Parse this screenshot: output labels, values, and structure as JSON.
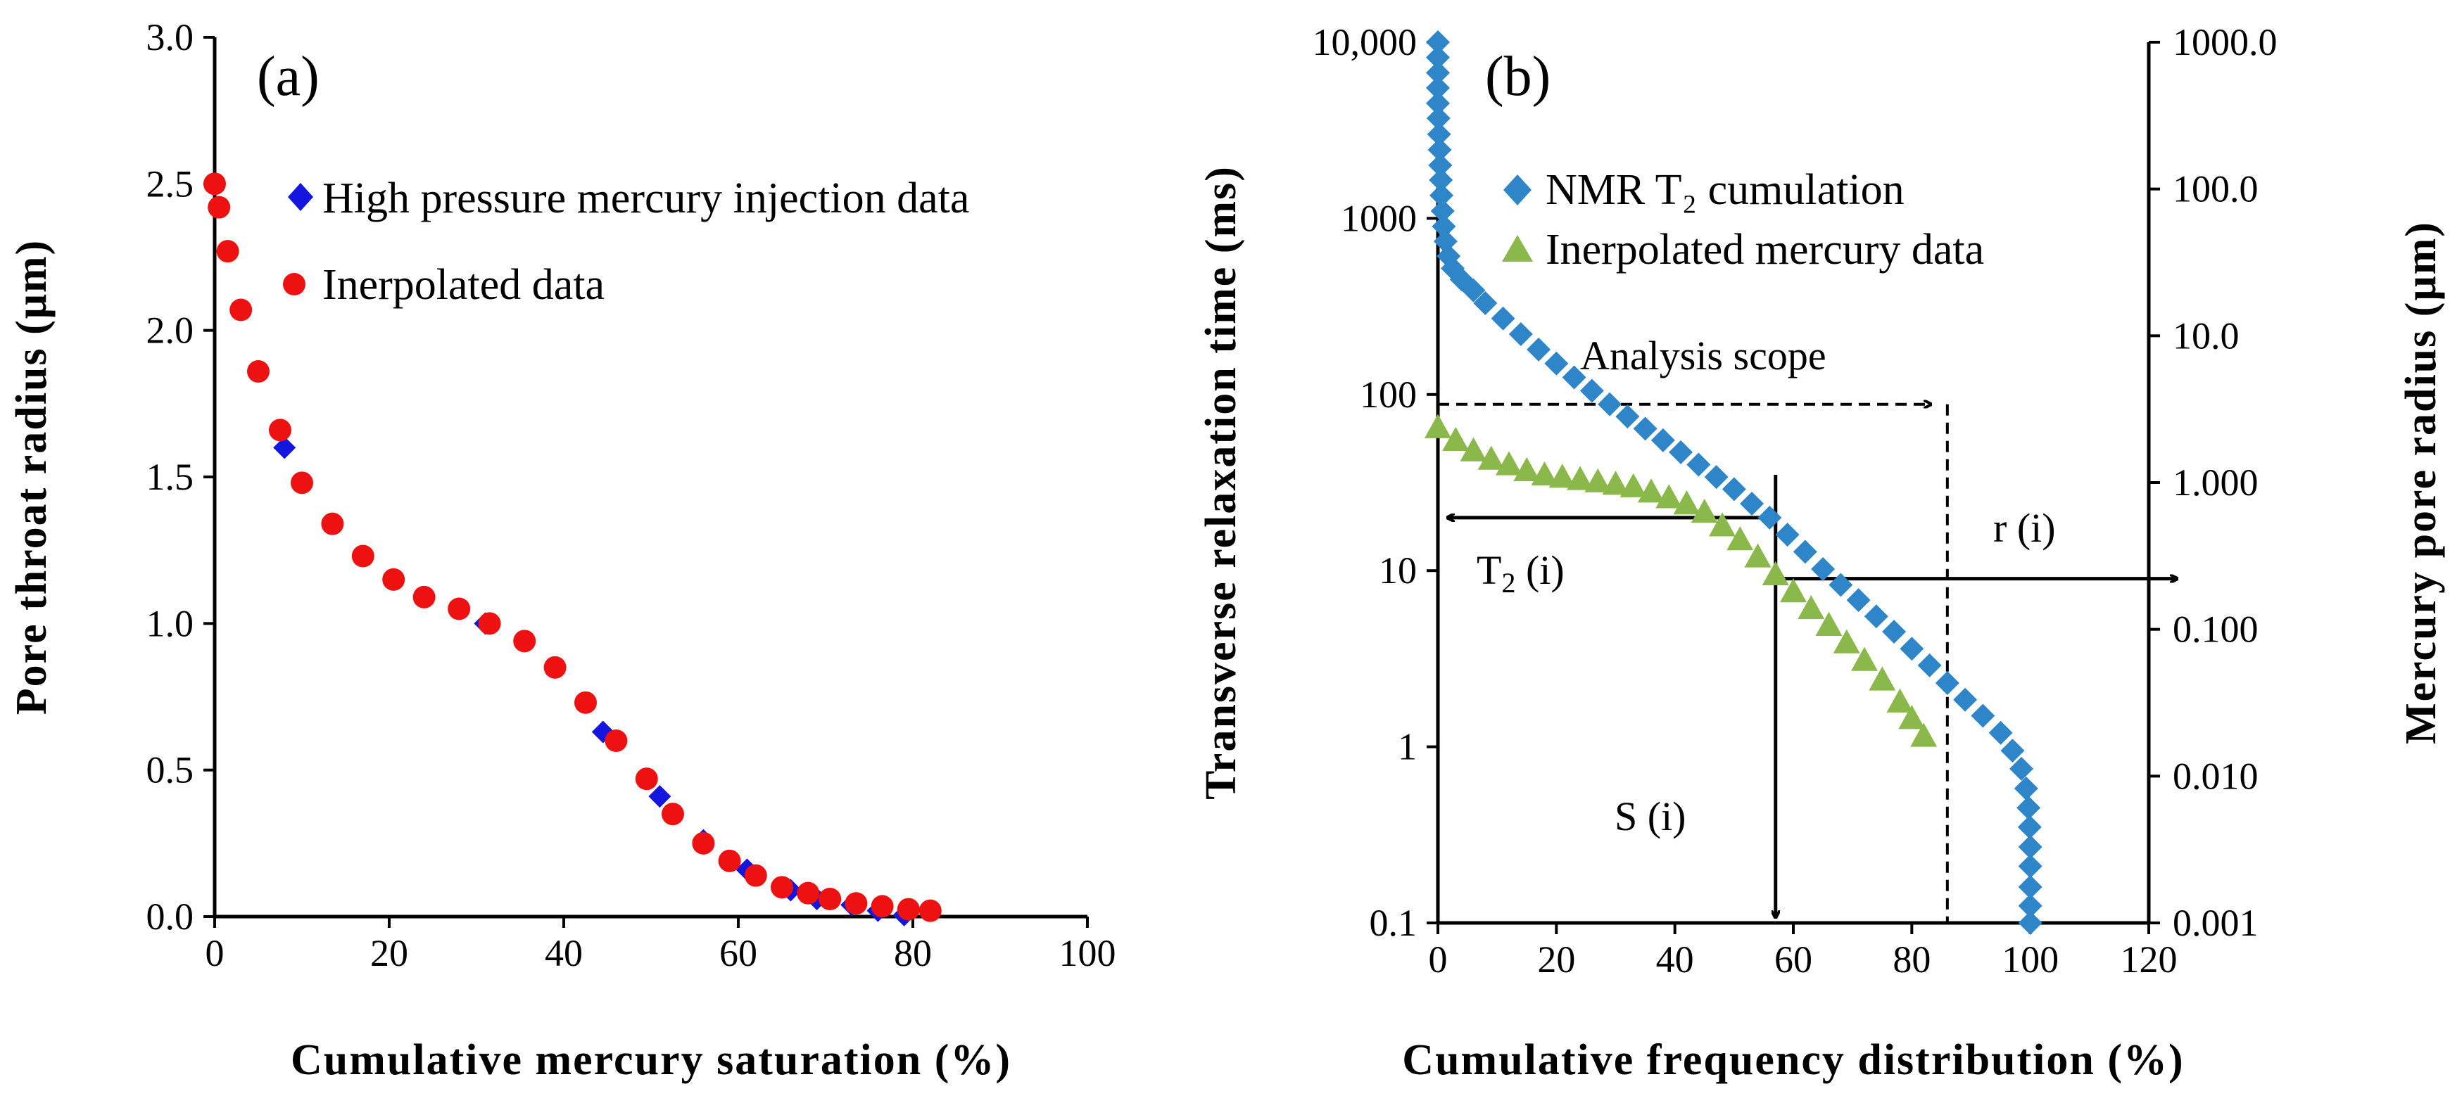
{
  "chart_data": [
    {
      "panel": "(a)",
      "type": "scatter",
      "title": "",
      "xlabel": "Cumulative mercury saturation (%)",
      "ylabel": "Pore throat radius (μm)",
      "xlim": [
        0,
        100
      ],
      "ylim": [
        0,
        3.0
      ],
      "x_ticks": [
        "0",
        "20",
        "40",
        "60",
        "80",
        "100"
      ],
      "y_ticks": [
        "0.0",
        "0.5",
        "1.0",
        "1.5",
        "2.0",
        "2.5",
        "3.0"
      ],
      "legend_position": "top-right",
      "series": [
        {
          "name": "High pressure mercury injection data",
          "marker": "diamond",
          "color": "#1515e0",
          "points": [
            [
              8.0,
              1.6
            ],
            [
              31.0,
              1.0
            ],
            [
              44.5,
              0.63
            ],
            [
              51.0,
              0.41
            ],
            [
              56.0,
              0.26
            ],
            [
              61.0,
              0.16
            ],
            [
              66.0,
              0.09
            ],
            [
              69.0,
              0.06
            ],
            [
              73.0,
              0.04
            ],
            [
              76.0,
              0.02
            ],
            [
              79.0,
              0.005
            ]
          ]
        },
        {
          "name": "Inerpolated data",
          "marker": "circle",
          "color": "#ee1111",
          "points": [
            [
              0.0,
              2.5
            ],
            [
              0.5,
              2.42
            ],
            [
              1.5,
              2.27
            ],
            [
              3.0,
              2.07
            ],
            [
              5.0,
              1.86
            ],
            [
              7.5,
              1.66
            ],
            [
              10.0,
              1.48
            ],
            [
              13.5,
              1.34
            ],
            [
              17.0,
              1.23
            ],
            [
              20.5,
              1.15
            ],
            [
              24.0,
              1.09
            ],
            [
              28.0,
              1.05
            ],
            [
              31.5,
              1.0
            ],
            [
              35.5,
              0.94
            ],
            [
              39.0,
              0.85
            ],
            [
              42.5,
              0.73
            ],
            [
              46.0,
              0.6
            ],
            [
              49.5,
              0.47
            ],
            [
              52.5,
              0.35
            ],
            [
              56.0,
              0.25
            ],
            [
              59.0,
              0.19
            ],
            [
              62.0,
              0.14
            ],
            [
              65.0,
              0.1
            ],
            [
              68.0,
              0.08
            ],
            [
              70.5,
              0.06
            ],
            [
              73.5,
              0.045
            ],
            [
              76.5,
              0.035
            ],
            [
              79.5,
              0.025
            ],
            [
              82.0,
              0.02
            ]
          ]
        }
      ]
    },
    {
      "panel": "(b)",
      "type": "scatter",
      "title": "",
      "xlabel": "Cumulative frequency distribution (%)",
      "ylabel": "Transverse relaxation time (ms)",
      "ylabel_right": "Mercury pore radius (μm)",
      "xlim": [
        0,
        120
      ],
      "ylim_log": [
        0.1,
        10000
      ],
      "ylim_right_log": [
        0.001,
        1000
      ],
      "x_ticks": [
        "0",
        "20",
        "40",
        "60",
        "80",
        "100",
        "120"
      ],
      "y_ticks": [
        "0.1",
        "1",
        "10",
        "100",
        "1000",
        "10,000"
      ],
      "y_ticks_right": [
        "0.001",
        "0.010",
        "0.100",
        "1.000",
        "10.0",
        "100.0",
        "1000.0"
      ],
      "legend_position": "top-left",
      "series": [
        {
          "name": "NMR T₂ cumulation",
          "marker": "diamond",
          "color": "#2e86c8",
          "points": [
            [
              0.0,
              10000
            ],
            [
              0.0,
              8200
            ],
            [
              0.0,
              6700
            ],
            [
              0.0,
              5500
            ],
            [
              0.0,
              4500
            ],
            [
              0.1,
              3700
            ],
            [
              0.2,
              3000
            ],
            [
              0.3,
              2450
            ],
            [
              0.4,
              2000
            ],
            [
              0.5,
              1650
            ],
            [
              0.6,
              1350
            ],
            [
              0.8,
              1100
            ],
            [
              1.0,
              900
            ],
            [
              1.3,
              740
            ],
            [
              1.8,
              610
            ],
            [
              2.5,
              520
            ],
            [
              4.0,
              450
            ],
            [
              6.0,
              390
            ],
            [
              8.0,
              330
            ],
            [
              11.0,
              270
            ],
            [
              14.0,
              220
            ],
            [
              17.0,
              180
            ],
            [
              20.0,
              150
            ],
            [
              23.0,
              125
            ],
            [
              26.0,
              105
            ],
            [
              29.0,
              88
            ],
            [
              32.0,
              75
            ],
            [
              35.0,
              64
            ],
            [
              38.0,
              55
            ],
            [
              41.0,
              47
            ],
            [
              44.0,
              40
            ],
            [
              47.0,
              34
            ],
            [
              50.0,
              29
            ],
            [
              53.0,
              24
            ],
            [
              56.0,
              20
            ],
            [
              59.0,
              16
            ],
            [
              62.0,
              12.8
            ],
            [
              65.0,
              10.2
            ],
            [
              68.0,
              8.3
            ],
            [
              71.0,
              6.8
            ],
            [
              74.0,
              5.5
            ],
            [
              77.0,
              4.5
            ],
            [
              80.0,
              3.6
            ],
            [
              83.0,
              2.9
            ],
            [
              86.0,
              2.3
            ],
            [
              89.0,
              1.85
            ],
            [
              92.0,
              1.5
            ],
            [
              95.0,
              1.2
            ],
            [
              97.0,
              0.95
            ],
            [
              98.5,
              0.75
            ],
            [
              99.3,
              0.58
            ],
            [
              99.7,
              0.45
            ],
            [
              99.9,
              0.35
            ],
            [
              100.0,
              0.27
            ],
            [
              100.0,
              0.21
            ],
            [
              100.0,
              0.16
            ],
            [
              100.0,
              0.125
            ],
            [
              100.0,
              0.1
            ]
          ]
        },
        {
          "name": "Inerpolated mercury data",
          "marker": "triangle",
          "color": "#8ab84a",
          "points": [
            [
              0.0,
              65
            ],
            [
              3.0,
              55
            ],
            [
              6.0,
              48
            ],
            [
              9.0,
              43
            ],
            [
              12.0,
              40
            ],
            [
              15.0,
              37
            ],
            [
              18.0,
              35
            ],
            [
              21.0,
              34
            ],
            [
              24.0,
              33
            ],
            [
              27.0,
              32
            ],
            [
              30.0,
              31
            ],
            [
              33.0,
              30
            ],
            [
              36.0,
              28
            ],
            [
              39.0,
              26
            ],
            [
              42.0,
              24
            ],
            [
              45.0,
              21.5
            ],
            [
              48.0,
              18
            ],
            [
              51.0,
              15
            ],
            [
              54.0,
              12
            ],
            [
              57.0,
              9.5
            ],
            [
              60.0,
              7.6
            ],
            [
              63.0,
              6.1
            ],
            [
              66.0,
              4.9
            ],
            [
              69.0,
              3.9
            ],
            [
              72.0,
              3.1
            ],
            [
              75.0,
              2.4
            ],
            [
              78.0,
              1.8
            ],
            [
              80.0,
              1.45
            ],
            [
              82.0,
              1.15
            ]
          ]
        }
      ],
      "annotations": {
        "analysis_scope": "Analysis scope",
        "t2": "T",
        "t2_sub": "2",
        "t2_suffix": " (i)",
        "r": "r (i)",
        "s": "S (i)"
      },
      "annotation_values": {
        "scope_x_end": 86,
        "scope_y": 88,
        "s_x": 57,
        "t2_y": 20,
        "r_y": 9
      }
    }
  ]
}
